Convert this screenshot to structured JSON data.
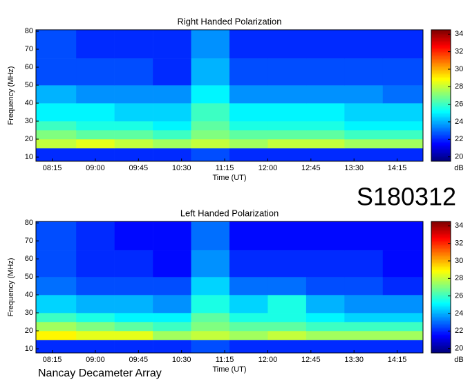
{
  "chart_data": [
    {
      "type": "heatmap",
      "title": "Right Handed Polarization",
      "xlabel": "Time (UT)",
      "ylabel": "Frequency (MHz)",
      "zlabel": "dB",
      "x_bins": [
        478,
        520,
        560,
        600,
        640,
        680,
        720,
        760,
        800,
        840,
        882
      ],
      "y_bins": [
        7.7,
        15,
        20,
        25,
        30,
        40,
        50,
        65,
        80.8
      ],
      "values": [
        [
          22,
          22,
          22,
          22,
          22.5,
          22,
          22,
          22,
          22,
          22
        ],
        [
          28,
          28.5,
          28,
          27.5,
          28,
          27.5,
          28,
          28,
          27.5,
          27.5
        ],
        [
          27,
          26.5,
          26.5,
          26,
          27,
          26.5,
          26.5,
          26.5,
          26,
          26
        ],
        [
          26,
          25.5,
          25.5,
          25,
          26.5,
          25.5,
          25.5,
          25.5,
          25,
          25
        ],
        [
          25,
          25,
          24.5,
          24.5,
          26,
          25,
          25,
          25,
          24.5,
          24.5
        ],
        [
          24,
          23.5,
          23.5,
          23.5,
          25,
          23.5,
          23.5,
          23.5,
          23.5,
          23
        ],
        [
          22.5,
          22.5,
          22.5,
          22,
          24,
          22.5,
          22.5,
          22.5,
          22.5,
          22.5
        ],
        [
          22.5,
          22,
          22,
          22,
          23.5,
          22,
          22,
          22,
          22,
          22
        ]
      ],
      "xlim": [
        478,
        882
      ],
      "ylim": [
        7.7,
        80.8
      ],
      "zlim": [
        19.5,
        34.5
      ],
      "xticks": [
        {
          "value": 495,
          "label": "08:15"
        },
        {
          "value": 540,
          "label": "09:00"
        },
        {
          "value": 585,
          "label": "09:45"
        },
        {
          "value": 630,
          "label": "10:30"
        },
        {
          "value": 675,
          "label": "11:15"
        },
        {
          "value": 720,
          "label": "12:00"
        },
        {
          "value": 765,
          "label": "12:45"
        },
        {
          "value": 810,
          "label": "13:30"
        },
        {
          "value": 855,
          "label": "14:15"
        }
      ],
      "yticks": [
        10,
        20,
        30,
        40,
        50,
        60,
        70,
        80
      ],
      "zticks": [
        20,
        22,
        24,
        26,
        28,
        30,
        32,
        34
      ]
    },
    {
      "type": "heatmap",
      "title": "Left Handed Polarization",
      "xlabel": "Time (UT)",
      "ylabel": "Frequency (MHz)",
      "zlabel": "dB",
      "x_bins": [
        478,
        520,
        560,
        600,
        640,
        680,
        720,
        760,
        800,
        840,
        882
      ],
      "y_bins": [
        7.7,
        15,
        20,
        25,
        30,
        40,
        50,
        65,
        80.8
      ],
      "values": [
        [
          22,
          22,
          22,
          22,
          22.5,
          22,
          22,
          22,
          22,
          22
        ],
        [
          29,
          28.5,
          28.5,
          27.5,
          28,
          27.5,
          28,
          27.5,
          27.5,
          27.5
        ],
        [
          27.5,
          27,
          26.5,
          26,
          27,
          26.5,
          26.5,
          26,
          26,
          26
        ],
        [
          26,
          25.5,
          25,
          25,
          26.5,
          25.5,
          25.5,
          25,
          24.5,
          24.5
        ],
        [
          24.5,
          24,
          24,
          23.5,
          25.5,
          24.5,
          25.5,
          24,
          23.5,
          23.5
        ],
        [
          23,
          22.5,
          22.5,
          22.5,
          24.5,
          23,
          23,
          22.5,
          22.5,
          22
        ],
        [
          22.5,
          22,
          22,
          21.5,
          23.5,
          22,
          22,
          22,
          22,
          21.5
        ],
        [
          22.5,
          22,
          21.5,
          21.5,
          23,
          21.5,
          21.5,
          21.5,
          21.5,
          21.5
        ]
      ],
      "xlim": [
        478,
        882
      ],
      "ylim": [
        7.7,
        80.8
      ],
      "zlim": [
        19.5,
        34.5
      ],
      "xticks": [
        {
          "value": 495,
          "label": "08:15"
        },
        {
          "value": 540,
          "label": "09:00"
        },
        {
          "value": 585,
          "label": "09:45"
        },
        {
          "value": 630,
          "label": "10:30"
        },
        {
          "value": 675,
          "label": "11:15"
        },
        {
          "value": 720,
          "label": "12:00"
        },
        {
          "value": 765,
          "label": "12:45"
        },
        {
          "value": 810,
          "label": "13:30"
        },
        {
          "value": 855,
          "label": "14:15"
        }
      ],
      "yticks": [
        10,
        20,
        30,
        40,
        50,
        60,
        70,
        80
      ],
      "zticks": [
        20,
        22,
        24,
        26,
        28,
        30,
        32,
        34
      ]
    }
  ],
  "station_id": "S180312",
  "observatory": "Nancay Decameter Array"
}
